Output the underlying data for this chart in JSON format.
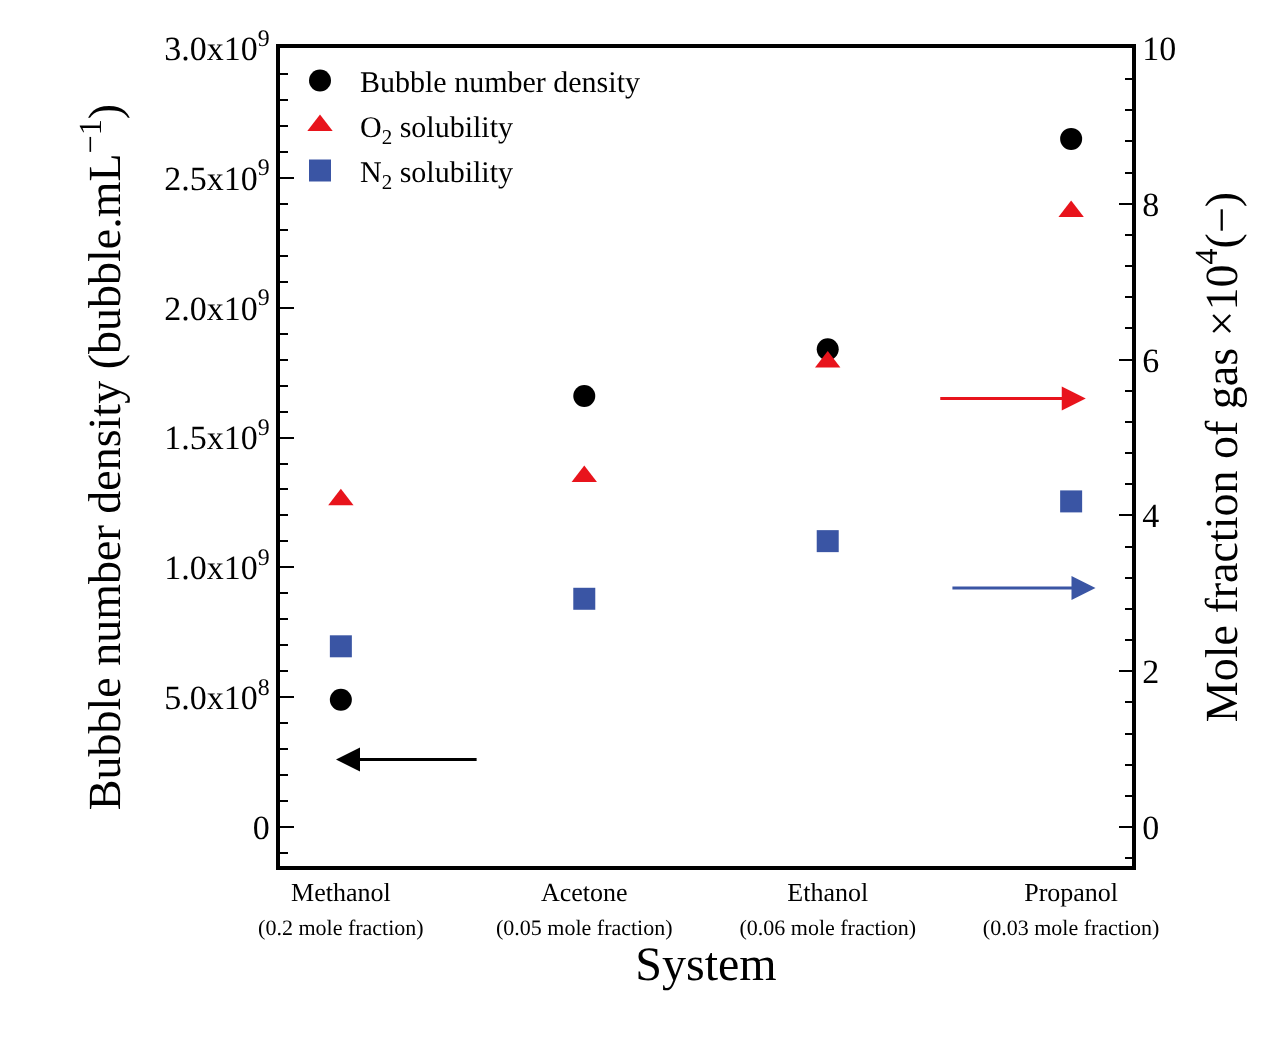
{
  "chart_data": {
    "type": "scatter",
    "xlabel": "System",
    "ylabel": "Bubble number density (bubble.mL$^{−1}$)",
    "y2label": "Mole fraction of gas ×10$^{4}$(−)",
    "categories": [
      "Methanol\n(0.2 mole fraction)",
      "Acetone\n(0.05 mole fraction)",
      "Ethanol\n(0.06 mole fraction)",
      "Propanol\n(0.03 mole fraction)"
    ],
    "series": [
      {
        "name": "Bubble number density",
        "color": "#000000",
        "marker": "circle",
        "values": [
          490000000.0,
          1660000000.0,
          1840000000.0,
          2650000000.0
        ]
      },
      {
        "name": "O$_{2}$ solubility",
        "color": "#e8141c",
        "marker": "triangle",
        "axis": "y2",
        "values": [
          4.2,
          4.5,
          5.97,
          7.9
        ]
      },
      {
        "name": "N$_{2}$ solubility",
        "color": "#3a55a4",
        "marker": "square",
        "axis": "y2",
        "values": [
          2.32,
          2.93,
          3.67,
          4.18
        ]
      }
    ],
    "ylim": [
      -150000000.0,
      3000000000.0
    ],
    "yticks": [
      {
        "value": 0,
        "label": "0"
      },
      {
        "value": 500000000.0,
        "label": "5.0x10$^{8}$"
      },
      {
        "value": 1000000000.0,
        "label": "1.0x10$^{9}$"
      },
      {
        "value": 1500000000.0,
        "label": "1.5x10$^{9}$"
      },
      {
        "value": 2000000000.0,
        "label": "2.0x10$^{9}$"
      },
      {
        "value": 2500000000.0,
        "label": "2.5x10$^{9}$"
      },
      {
        "value": 3000000000.0,
        "label": "3.0x10$^{9}$"
      }
    ],
    "y2lim": [
      -0.5,
      10
    ],
    "y2ticks": [
      0,
      2,
      4,
      6,
      8,
      10
    ],
    "legend": "top left"
  }
}
